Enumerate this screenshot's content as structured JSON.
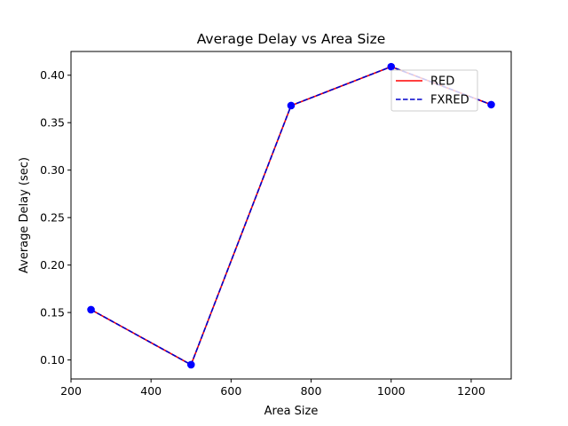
{
  "chart_data": {
    "type": "line",
    "title": "Average Delay vs Area Size",
    "xlabel": "Area Size",
    "ylabel": "Average Delay (sec)",
    "xlim": [
      200,
      1300
    ],
    "ylim": [
      0.08,
      0.425
    ],
    "xticks": [
      200,
      400,
      600,
      800,
      1000,
      1200
    ],
    "yticks": [
      0.1,
      0.15,
      0.2,
      0.25,
      0.3,
      0.35,
      0.4
    ],
    "ytick_labels": [
      "0.10",
      "0.15",
      "0.20",
      "0.25",
      "0.30",
      "0.35",
      "0.40"
    ],
    "grid": false,
    "legend_position": "upper-right",
    "x": [
      250,
      500,
      750,
      1000,
      1250
    ],
    "series": [
      {
        "name": "RED",
        "values": [
          0.153,
          0.095,
          0.368,
          0.409,
          0.369
        ],
        "color": "#ff0000",
        "style": "solid"
      },
      {
        "name": "FXRED",
        "values": [
          0.153,
          0.095,
          0.368,
          0.409,
          0.369
        ],
        "color": "#0000cc",
        "style": "dashed"
      }
    ],
    "marker_color": "#0000ff"
  }
}
